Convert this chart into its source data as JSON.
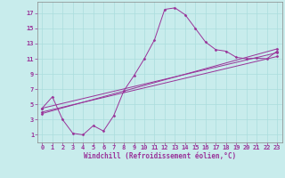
{
  "xlabel": "Windchill (Refroidissement éolien,°C)",
  "bg_color": "#c8ecec",
  "line_color": "#993399",
  "xlim": [
    -0.5,
    23.5
  ],
  "ylim": [
    0,
    18.5
  ],
  "xticks": [
    0,
    1,
    2,
    3,
    4,
    5,
    6,
    7,
    8,
    9,
    10,
    11,
    12,
    13,
    14,
    15,
    16,
    17,
    18,
    19,
    20,
    21,
    22,
    23
  ],
  "yticks": [
    1,
    3,
    5,
    7,
    9,
    11,
    13,
    15,
    17
  ],
  "grid_color": "#aadddd",
  "series_main": [
    [
      0,
      4.5
    ],
    [
      1,
      6.0
    ],
    [
      2,
      3.0
    ],
    [
      3,
      1.2
    ],
    [
      4,
      1.0
    ],
    [
      5,
      2.2
    ],
    [
      6,
      1.5
    ],
    [
      7,
      3.5
    ],
    [
      8,
      6.8
    ],
    [
      9,
      8.8
    ],
    [
      10,
      11.0
    ],
    [
      11,
      13.5
    ],
    [
      12,
      17.5
    ],
    [
      13,
      17.7
    ],
    [
      14,
      16.8
    ],
    [
      15,
      15.0
    ],
    [
      16,
      13.2
    ],
    [
      17,
      12.2
    ],
    [
      18,
      12.0
    ],
    [
      19,
      11.2
    ],
    [
      20,
      11.0
    ],
    [
      21,
      11.1
    ],
    [
      22,
      11.0
    ],
    [
      23,
      12.0
    ]
  ],
  "series_line1": [
    [
      0,
      4.0
    ],
    [
      23,
      11.3
    ]
  ],
  "series_line2": [
    [
      0,
      4.5
    ],
    [
      23,
      11.8
    ]
  ],
  "series_line3": [
    [
      0,
      3.8
    ],
    [
      23,
      12.3
    ]
  ]
}
